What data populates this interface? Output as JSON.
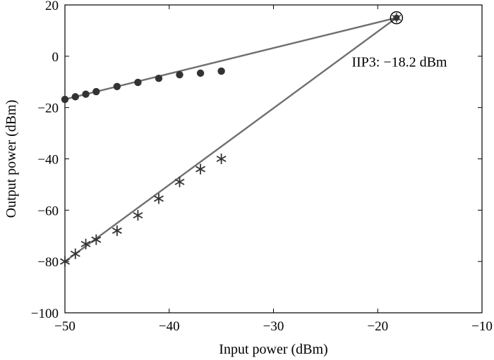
{
  "chart_data": {
    "type": "scatter",
    "title": "",
    "xlabel": "Input power (dBm)",
    "ylabel": "Output power (dBm)",
    "xlim": [
      -50,
      -10
    ],
    "ylim": [
      -100,
      20
    ],
    "xticks": [
      -50,
      -40,
      -30,
      -20,
      -10
    ],
    "yticks": [
      -100,
      -80,
      -60,
      -40,
      -20,
      0,
      20
    ],
    "xtick_labels": [
      "−50",
      "−40",
      "−30",
      "−20",
      "−10"
    ],
    "ytick_labels": [
      "−100",
      "−80",
      "−60",
      "−40",
      "−20",
      "0",
      "20"
    ],
    "grid": false,
    "series": [
      {
        "marker": "dot",
        "x": [
          -50,
          -49,
          -48,
          -47,
          -45,
          -43,
          -41,
          -39,
          -37,
          -35
        ],
        "y": [
          -16.8,
          -15.8,
          -14.8,
          -13.8,
          -11.8,
          -10.2,
          -8.6,
          -7.2,
          -6.6,
          -5.8
        ]
      },
      {
        "marker": "star",
        "x": [
          -50,
          -49,
          -48,
          -47,
          -45,
          -43,
          -41,
          -39,
          -37,
          -35
        ],
        "y": [
          -80,
          -77,
          -73.2,
          -71.5,
          -68,
          -62,
          -55.5,
          -49,
          -44,
          -40
        ]
      },
      {
        "type": "line",
        "x": [
          -50,
          -18.2
        ],
        "y": [
          -16.8,
          15
        ]
      },
      {
        "type": "line",
        "x": [
          -50,
          -18.2
        ],
        "y": [
          -80,
          15
        ]
      }
    ],
    "intercept_point": {
      "x": -18.2,
      "y": 15
    },
    "annotation": {
      "text": "IIP3: −18.2 dBm",
      "x": -22.5,
      "y": -4
    },
    "colors": {
      "line": "#707070",
      "marker": "#333333",
      "axis": "#000000"
    }
  }
}
